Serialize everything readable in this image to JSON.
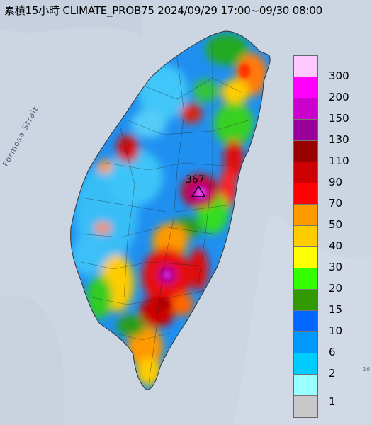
{
  "title": "累積15小時 CLIMATE_PROB75 2024/09/29 17:00~09/30 08:00",
  "sea_label": "Formosa Strait",
  "corner_mark": "16",
  "peak": {
    "value": "367",
    "marker_icon": "triangle-icon"
  },
  "legend": {
    "labels": [
      "300",
      "200",
      "150",
      "130",
      "110",
      "90",
      "70",
      "50",
      "40",
      "30",
      "20",
      "15",
      "10",
      "6",
      "2",
      "1"
    ],
    "colors": [
      "#ffc8ff",
      "#ff00ff",
      "#cc00cc",
      "#990099",
      "#990000",
      "#cc0000",
      "#ff0000",
      "#ff9900",
      "#ffcc00",
      "#ffff00",
      "#33ff00",
      "#339900",
      "#0066ff",
      "#0099ff",
      "#00ccff",
      "#99ffff",
      "#c8c8c8"
    ]
  }
}
